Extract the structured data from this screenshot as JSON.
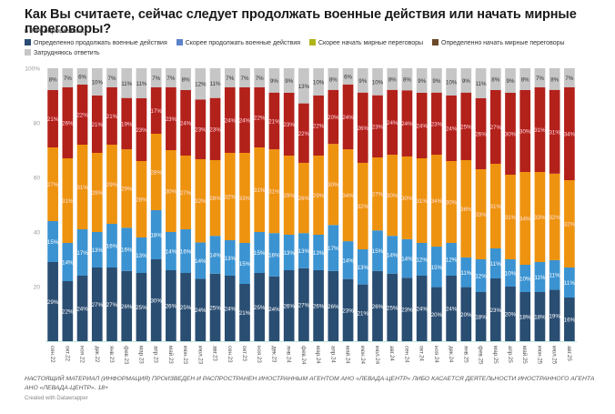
{
  "header": {
    "title": "Как Вы считаете, сейчас следует продолжать военные действия или начать мирные переговоры?",
    "subtitle": "в %% опрошенных"
  },
  "legend": [
    {
      "label": "Определенно продолжать военные действия",
      "color": "#2b4c74"
    },
    {
      "label": "Скорее продолжать военные действия",
      "color": "#5b83c9"
    },
    {
      "label": "Скорее начать мирные переговоры",
      "color": "#b0b51c"
    },
    {
      "label": "Определенно начать мирные переговоры",
      "color": "#6b4a2a"
    },
    {
      "label": "Затрудняюсь ответить",
      "color": "#c6c6c6"
    }
  ],
  "footer": {
    "disclaimer": "НАСТОЯЩИЙ МАТЕРИАЛ (ИНФОРМАЦИЯ) ПРОИЗВЕДЕН И РАСПРОСТРАНЕН ИНОСТРАННЫМ АГЕНТОМ АНО «ЛЕВАДА-ЦЕНТР» ЛИБО КАСАЕТСЯ ДЕЯТЕЛЬНОСТИ ИНОСТРАННОГО АГЕНТА АНО «ЛЕВАДА-ЦЕНТР». 18+",
    "credit": "Created with Datawrapper"
  },
  "chart_data": {
    "type": "bar",
    "stacked": true,
    "orientation": "vertical",
    "title": "Как Вы считаете, сейчас следует продолжать военные действия или начать мирные переговоры?",
    "ylabel": "в %% опрошенных",
    "xlabel": "",
    "ylim": [
      0,
      100
    ],
    "yticks": [
      "20",
      "40",
      "60",
      "80",
      "100%"
    ],
    "grid": false,
    "legend_position": "top",
    "categories": [
      "сен.22",
      "окт.22",
      "ноя.22",
      "дек.22",
      "янв.23",
      "фев.23",
      "мар.23",
      "апр.23",
      "май.23",
      "июн.23",
      "июл.23",
      "авг.23",
      "сен.23",
      "окт.23",
      "ноя.23",
      "дек.23",
      "янв.24",
      "фев.24",
      "мар.24",
      "апр.24",
      "май.24",
      "июн.24",
      "июл.24",
      "авг.24",
      "сен.24",
      "окт.24",
      "ноя.24",
      "дек.24",
      "янв.25",
      "фев.25",
      "мар.25",
      "апр.25",
      "май.25",
      "июн.25",
      "июл.25",
      "авг.25"
    ],
    "series": [
      {
        "name": "Определенно продолжать военные действия",
        "color": "#2a4d72",
        "label_color": "#ffffff",
        "values": [
          29,
          22,
          24,
          27,
          27,
          26,
          25,
          30,
          26,
          25,
          24,
          25,
          24,
          21,
          25,
          24,
          26,
          27,
          26,
          26,
          23,
          21,
          26,
          25,
          23,
          24,
          20,
          24,
          20,
          18,
          23,
          20,
          18,
          18,
          19,
          16
        ]
      },
      {
        "name": "Скорее продолжать военные действия",
        "color": "#3b93d1",
        "label_color": "#ffffff",
        "values": [
          15,
          14,
          17,
          13,
          16,
          16,
          13,
          18,
          14,
          16,
          14,
          14,
          13,
          15,
          15,
          16,
          13,
          13,
          13,
          17,
          14,
          13,
          15,
          14,
          14,
          12,
          15,
          12,
          11,
          12,
          11,
          10,
          10,
          11,
          11,
          11
        ]
      },
      {
        "name": "Скорее начать мирные переговоры",
        "color": "#ee930f",
        "label_color": "#fbe0e0",
        "values": [
          27,
          31,
          31,
          29,
          29,
          29,
          28,
          28,
          30,
          27,
          32,
          28,
          32,
          33,
          31,
          31,
          29,
          26,
          29,
          30,
          34,
          32,
          27,
          30,
          30,
          31,
          34,
          30,
          36,
          33,
          31,
          31,
          34,
          33,
          32,
          32
        ]
      },
      {
        "name": "Определенно начать мирные переговоры",
        "color": "#b3211b",
        "label_color": "#ffd6e0",
        "values": [
          21,
          26,
          22,
          21,
          21,
          19,
          23,
          17,
          23,
          24,
          23,
          23,
          24,
          24,
          22,
          21,
          23,
          22,
          22,
          20,
          24,
          26,
          23,
          24,
          24,
          24,
          23,
          24,
          25,
          26,
          27,
          30,
          30,
          31,
          31,
          34
        ]
      },
      {
        "name": "Затрудняюсь ответить",
        "color": "#c6c6c6",
        "label_color": "#333333",
        "values": [
          8,
          7,
          6,
          10,
          7,
          11,
          11,
          7,
          7,
          8,
          12,
          11,
          7,
          7,
          7,
          9,
          9,
          13,
          10,
          8,
          6,
          9,
          10,
          8,
          8,
          9,
          9,
          10,
          9,
          11,
          8,
          9,
          8,
          7,
          8,
          7
        ]
      }
    ]
  }
}
